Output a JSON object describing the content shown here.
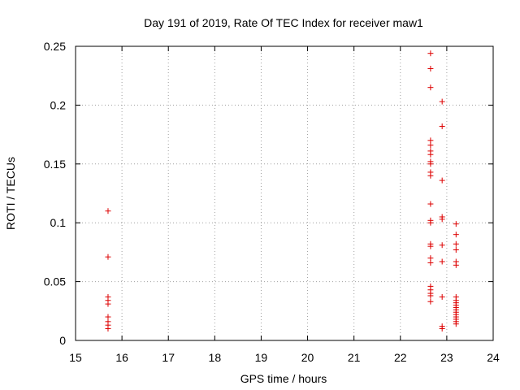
{
  "chart_data": {
    "type": "scatter",
    "title": "Day 191 of 2019, Rate Of TEC Index for receiver maw1",
    "xlabel": "GPS time / hours",
    "ylabel": "ROTI / TECUs",
    "xlim": [
      15,
      24
    ],
    "ylim": [
      0,
      0.25
    ],
    "xticks": [
      "15",
      "16",
      "17",
      "18",
      "19",
      "20",
      "21",
      "22",
      "23",
      "24"
    ],
    "yticks": [
      "0",
      "0.05",
      "0.1",
      "0.15",
      "0.2",
      "0.25"
    ],
    "grid": true,
    "marker": "plus",
    "color": "#dd0000",
    "series": [
      {
        "points": [
          [
            15.7,
            0.11
          ],
          [
            15.7,
            0.071
          ],
          [
            15.7,
            0.037
          ],
          [
            15.7,
            0.034
          ],
          [
            15.7,
            0.031
          ],
          [
            15.7,
            0.02
          ],
          [
            15.7,
            0.016
          ],
          [
            15.7,
            0.013
          ],
          [
            15.7,
            0.01
          ],
          [
            22.65,
            0.244
          ],
          [
            22.65,
            0.231
          ],
          [
            22.65,
            0.215
          ],
          [
            22.65,
            0.17
          ],
          [
            22.65,
            0.166
          ],
          [
            22.65,
            0.161
          ],
          [
            22.65,
            0.158
          ],
          [
            22.65,
            0.152
          ],
          [
            22.65,
            0.15
          ],
          [
            22.65,
            0.143
          ],
          [
            22.65,
            0.14
          ],
          [
            22.65,
            0.116
          ],
          [
            22.65,
            0.102
          ],
          [
            22.65,
            0.1
          ],
          [
            22.65,
            0.082
          ],
          [
            22.65,
            0.08
          ],
          [
            22.65,
            0.07
          ],
          [
            22.65,
            0.066
          ],
          [
            22.65,
            0.046
          ],
          [
            22.65,
            0.043
          ],
          [
            22.65,
            0.04
          ],
          [
            22.65,
            0.038
          ],
          [
            22.65,
            0.033
          ],
          [
            22.9,
            0.203
          ],
          [
            22.9,
            0.182
          ],
          [
            22.9,
            0.136
          ],
          [
            22.9,
            0.105
          ],
          [
            22.9,
            0.103
          ],
          [
            22.9,
            0.081
          ],
          [
            22.9,
            0.067
          ],
          [
            22.9,
            0.037
          ],
          [
            22.9,
            0.012
          ],
          [
            22.9,
            0.01
          ],
          [
            23.2,
            0.099
          ],
          [
            23.2,
            0.09
          ],
          [
            23.2,
            0.082
          ],
          [
            23.2,
            0.077
          ],
          [
            23.2,
            0.067
          ],
          [
            23.2,
            0.064
          ],
          [
            23.2,
            0.037
          ],
          [
            23.2,
            0.034
          ],
          [
            23.2,
            0.032
          ],
          [
            23.2,
            0.03
          ],
          [
            23.2,
            0.028
          ],
          [
            23.2,
            0.026
          ],
          [
            23.2,
            0.024
          ],
          [
            23.2,
            0.022
          ],
          [
            23.2,
            0.02
          ],
          [
            23.2,
            0.018
          ],
          [
            23.2,
            0.016
          ],
          [
            23.2,
            0.014
          ]
        ]
      }
    ]
  }
}
